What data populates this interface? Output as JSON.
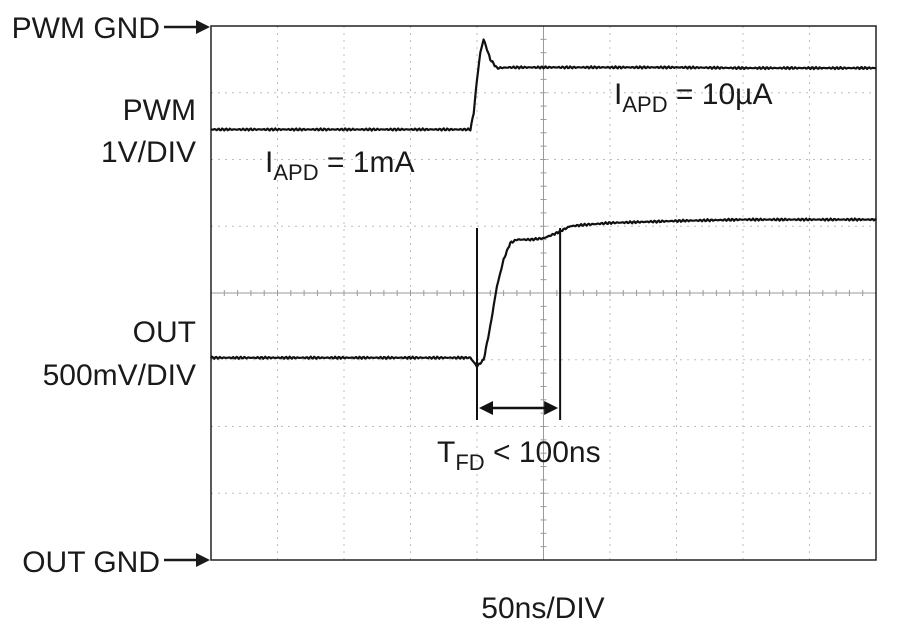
{
  "chart_data": {
    "type": "line",
    "xlabel": "50ns/DIV",
    "x_divisions": 10,
    "y_divisions": 8,
    "grid": true,
    "channels": [
      {
        "label": "PWM",
        "scale": "1V/DIV",
        "ground_label": "PWM GND",
        "ground_division": 8
      },
      {
        "label": "OUT",
        "scale": "500mV/DIV",
        "ground_label": "OUT GND",
        "ground_division": 0
      }
    ],
    "series": [
      {
        "name": "PWM",
        "x": [
          0,
          1,
          2,
          3,
          3.9,
          3.95,
          4.0,
          4.05,
          4.1,
          4.2,
          4.3,
          4.5,
          5,
          6,
          7,
          8,
          9,
          10
        ],
        "y": [
          6.45,
          6.45,
          6.45,
          6.45,
          6.45,
          6.7,
          7.2,
          7.6,
          7.8,
          7.5,
          7.37,
          7.38,
          7.38,
          7.38,
          7.38,
          7.37,
          7.37,
          7.37
        ]
      },
      {
        "name": "OUT",
        "x": [
          0,
          1,
          2,
          3,
          3.9,
          4.0,
          4.1,
          4.2,
          4.3,
          4.4,
          4.5,
          4.6,
          4.8,
          5.0,
          5.2,
          5.4,
          5.6,
          6.0,
          7.0,
          8.0,
          9.0,
          10
        ],
        "y": [
          3.03,
          3.03,
          3.03,
          3.03,
          3.03,
          2.9,
          3.0,
          3.5,
          4.1,
          4.5,
          4.75,
          4.8,
          4.8,
          4.82,
          4.9,
          5.0,
          5.02,
          5.05,
          5.08,
          5.1,
          5.1,
          5.1
        ]
      }
    ],
    "annotations": [
      {
        "id": "iapd-1ma",
        "main": "I",
        "sub": "APD",
        "rest": " = 1mA"
      },
      {
        "id": "iapd-10ua",
        "main": "I",
        "sub": "APD",
        "rest": " = 10µA"
      },
      {
        "id": "tfd",
        "main": "T",
        "sub": "FD",
        "rest": " < 100ns",
        "x_start": 4.0,
        "x_end": 5.25
      }
    ]
  }
}
